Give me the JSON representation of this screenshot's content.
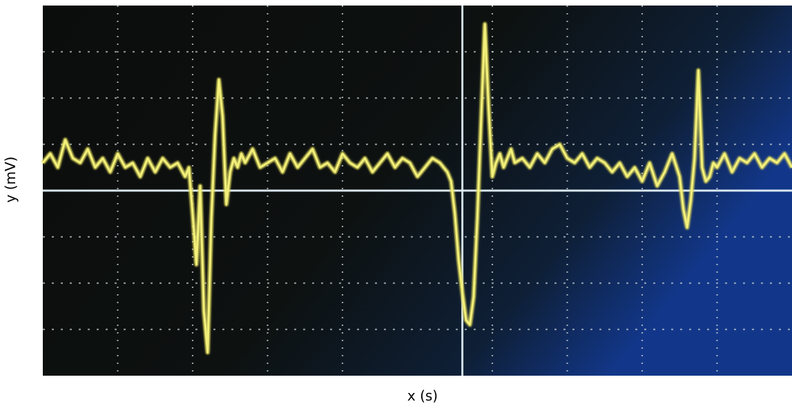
{
  "chart_data": {
    "type": "line",
    "title": "",
    "xlabel": "x (s)",
    "ylabel": "y (mV)",
    "xlim": [
      0,
      10
    ],
    "ylim": [
      -4,
      4
    ],
    "grid": true,
    "legend": "none",
    "colors": {
      "trace": "#f3f07a",
      "trace_glow": "#c9c23a",
      "screen_left": "#0b0d0c",
      "screen_right": "#10306a",
      "grid": "#c9d2d6",
      "center_axis": "#e4f2f8"
    },
    "series": [
      {
        "x": [
          0.0,
          0.1,
          0.2,
          0.3,
          0.4,
          0.5,
          0.6,
          0.7,
          0.8,
          0.9,
          1.0,
          1.1,
          1.2,
          1.3,
          1.4,
          1.5,
          1.6,
          1.7,
          1.8,
          1.9,
          1.95,
          2.0,
          2.05,
          2.1,
          2.15,
          2.2,
          2.25,
          2.3,
          2.35,
          2.4,
          2.45,
          2.5,
          2.55,
          2.6,
          2.65,
          2.7,
          2.8,
          2.9,
          3.0,
          3.1,
          3.2,
          3.3,
          3.4,
          3.5,
          3.6,
          3.7,
          3.8,
          3.9,
          4.0,
          4.1,
          4.2,
          4.3,
          4.4,
          4.5,
          4.6,
          4.7,
          4.8,
          4.9,
          5.0,
          5.1,
          5.2,
          5.3,
          5.4,
          5.45,
          5.5,
          5.55,
          5.6,
          5.65,
          5.7,
          5.75,
          5.8,
          5.85,
          5.9,
          5.95,
          6.0,
          6.05,
          6.1,
          6.15,
          6.2,
          6.25,
          6.3,
          6.4,
          6.5,
          6.6,
          6.7,
          6.8,
          6.9,
          7.0,
          7.1,
          7.2,
          7.3,
          7.4,
          7.5,
          7.6,
          7.7,
          7.8,
          7.9,
          8.0,
          8.1,
          8.2,
          8.3,
          8.4,
          8.5,
          8.55,
          8.6,
          8.65,
          8.7,
          8.75,
          8.8,
          8.85,
          8.9,
          8.95,
          9.0,
          9.1,
          9.2,
          9.3,
          9.4,
          9.5,
          9.6,
          9.7,
          9.8,
          9.9,
          10.0
        ],
        "y": [
          0.6,
          0.8,
          0.5,
          1.1,
          0.7,
          0.6,
          0.9,
          0.5,
          0.7,
          0.4,
          0.8,
          0.5,
          0.6,
          0.3,
          0.7,
          0.4,
          0.7,
          0.5,
          0.6,
          0.3,
          0.5,
          -0.5,
          -1.6,
          0.1,
          -2.6,
          -3.5,
          -0.6,
          1.2,
          2.4,
          1.6,
          -0.3,
          0.4,
          0.7,
          0.5,
          0.8,
          0.6,
          0.9,
          0.5,
          0.6,
          0.7,
          0.4,
          0.8,
          0.5,
          0.7,
          0.9,
          0.5,
          0.6,
          0.4,
          0.8,
          0.6,
          0.5,
          0.7,
          0.4,
          0.6,
          0.8,
          0.5,
          0.7,
          0.6,
          0.3,
          0.5,
          0.7,
          0.6,
          0.4,
          0.2,
          -0.5,
          -1.5,
          -2.2,
          -2.8,
          -2.9,
          -2.3,
          -0.6,
          1.5,
          3.6,
          1.8,
          0.3,
          0.6,
          0.8,
          0.5,
          0.7,
          0.9,
          0.6,
          0.7,
          0.5,
          0.8,
          0.6,
          0.9,
          1.0,
          0.7,
          0.6,
          0.8,
          0.5,
          0.7,
          0.6,
          0.4,
          0.6,
          0.3,
          0.5,
          0.2,
          0.6,
          0.1,
          0.4,
          0.8,
          0.3,
          -0.4,
          -0.8,
          -0.2,
          0.7,
          2.6,
          0.5,
          0.2,
          0.3,
          0.6,
          0.5,
          0.8,
          0.4,
          0.7,
          0.6,
          0.8,
          0.5,
          0.7,
          0.6,
          0.8,
          0.5
        ]
      }
    ]
  }
}
